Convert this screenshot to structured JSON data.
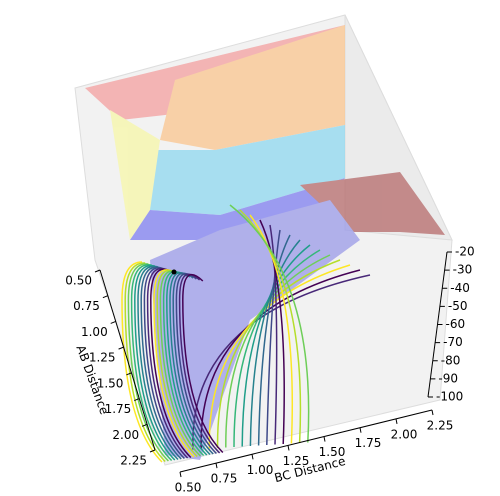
{
  "chart_data": {
    "type": "surface3d",
    "xlabel": "AB Distance",
    "ylabel": "BC Distance",
    "xlim": [
      0.5,
      2.25
    ],
    "ylim": [
      0.5,
      2.25
    ],
    "zlim": [
      -20,
      -100
    ],
    "xticks": [
      {
        "value": 0.5,
        "label": "0.50"
      },
      {
        "value": 0.75,
        "label": "0.75"
      },
      {
        "value": 1.0,
        "label": "1.00"
      },
      {
        "value": 1.25,
        "label": "1.25"
      },
      {
        "value": 1.5,
        "label": "1.50"
      },
      {
        "value": 1.75,
        "label": "1.75"
      },
      {
        "value": 2.0,
        "label": "2.00"
      },
      {
        "value": 2.25,
        "label": "2.25"
      }
    ],
    "yticks": [
      {
        "value": 0.5,
        "label": "0.50"
      },
      {
        "value": 0.75,
        "label": "0.75"
      },
      {
        "value": 1.0,
        "label": "1.00"
      },
      {
        "value": 1.25,
        "label": "1.25"
      },
      {
        "value": 1.5,
        "label": "1.50"
      },
      {
        "value": 1.75,
        "label": "1.75"
      },
      {
        "value": 2.0,
        "label": "2.00"
      },
      {
        "value": 2.25,
        "label": "2.25"
      }
    ],
    "zticks": [
      -20,
      -30,
      -40,
      -50,
      -60,
      -70,
      -80,
      -90,
      -100
    ]
  }
}
